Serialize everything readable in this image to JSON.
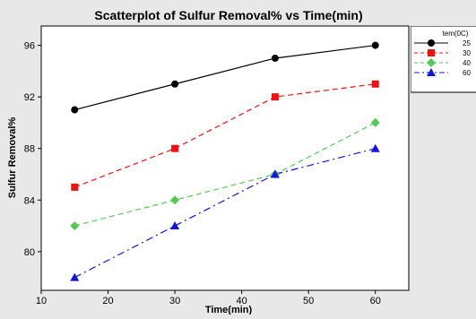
{
  "chart_data": {
    "type": "line",
    "title": "Scatterplot of Sulfur Removal% vs Time(min)",
    "xlabel": "Time(min)",
    "ylabel": "Sulfur Removal%",
    "xlim": [
      10,
      65
    ],
    "ylim": [
      77,
      97.5
    ],
    "xticks": [
      10,
      20,
      30,
      40,
      50,
      60
    ],
    "yticks": [
      80,
      84,
      88,
      92,
      96
    ],
    "grid": false,
    "legend_position": "top-right",
    "legend_title": "tem(0C)",
    "x": [
      15,
      30,
      45,
      60
    ],
    "series": [
      {
        "name": "25",
        "values": [
          91,
          93,
          95,
          96
        ],
        "color": "#000000",
        "marker": "circle",
        "line_style": "solid"
      },
      {
        "name": "30",
        "values": [
          85,
          88,
          92,
          93
        ],
        "color": "#ee1111",
        "marker": "square",
        "line_style": "dashed"
      },
      {
        "name": "40",
        "values": [
          82,
          84,
          86,
          90
        ],
        "color": "#55c855",
        "marker": "diamond",
        "line_style": "dashed"
      },
      {
        "name": "60",
        "values": [
          78,
          82,
          86,
          88
        ],
        "color": "#1515d8",
        "marker": "triangle",
        "line_style": "dashdot"
      }
    ]
  }
}
